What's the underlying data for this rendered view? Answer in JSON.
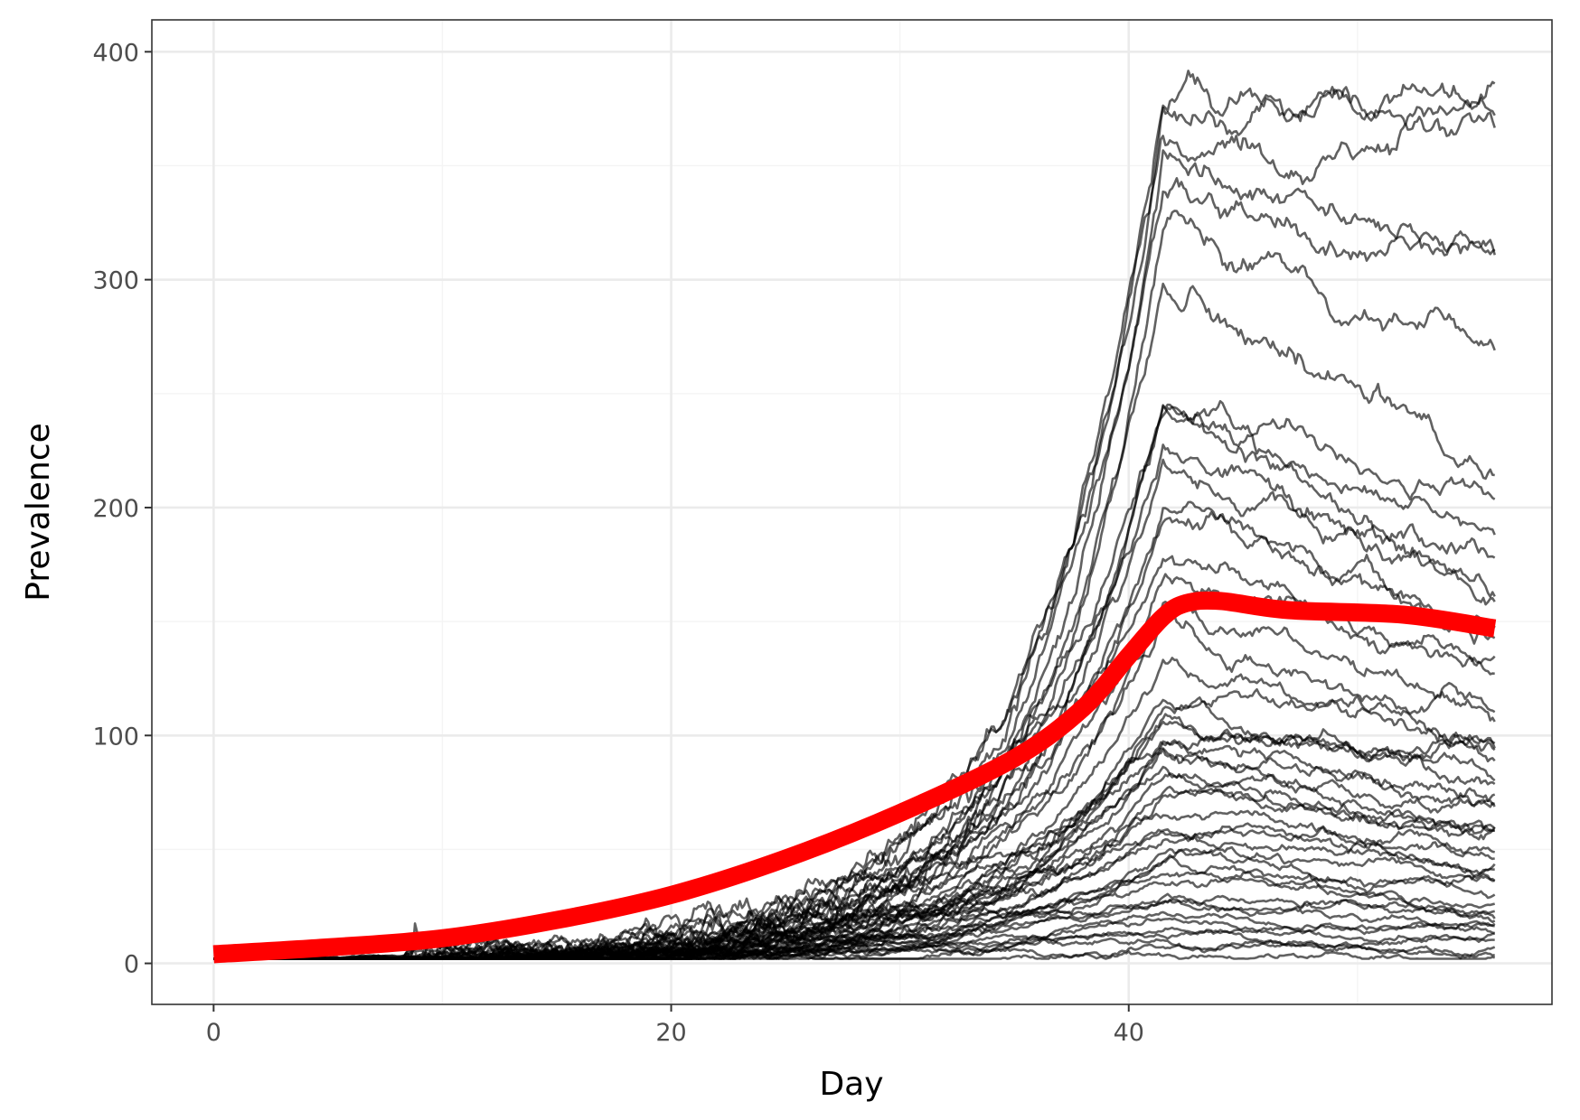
{
  "chart_data": {
    "type": "line",
    "title": "",
    "xlabel": "Day",
    "ylabel": "Prevalence",
    "xlim": [
      -2.7,
      58.5
    ],
    "ylim": [
      -18,
      414
    ],
    "x_ticks": [
      0,
      20,
      40
    ],
    "x_tick_labels": [
      "0",
      "20",
      "40"
    ],
    "y_ticks": [
      0,
      100,
      200,
      300,
      400
    ],
    "y_tick_labels": [
      "0",
      "100",
      "200",
      "300",
      "400"
    ],
    "grid": true,
    "legend": "none",
    "background": "#ffffff",
    "colors": {
      "simulation": "#000000",
      "mean": "#ff0000",
      "grid_major": "#ebebeb",
      "grid_minor": "#f4f4f4",
      "panel_border": "#333333"
    },
    "simulation_final_values": [
      382,
      378,
      358,
      312,
      306,
      264,
      215,
      198,
      192,
      178,
      160,
      157,
      150,
      140,
      130,
      122,
      115,
      103,
      98,
      94,
      90,
      86,
      82,
      78,
      74,
      70,
      66,
      62,
      58,
      55,
      52,
      49,
      46,
      43,
      40,
      37,
      34,
      31,
      28,
      25,
      22,
      19,
      17,
      15,
      13,
      11,
      9,
      7,
      5,
      3
    ],
    "simulation_peak_values": [
      376,
      372,
      360,
      352,
      334,
      326,
      300,
      244,
      240,
      236,
      226,
      215,
      205,
      200,
      186,
      175,
      160,
      146,
      132,
      120,
      112,
      108,
      104,
      100,
      96,
      92,
      88,
      84,
      80,
      76,
      72,
      68,
      64,
      60,
      56,
      52,
      48,
      44,
      40,
      36,
      32,
      28,
      25,
      22,
      19,
      16,
      13,
      10,
      7,
      4
    ],
    "series": [
      {
        "name": "mean",
        "x": [
          0,
          5,
          10,
          15,
          20,
          25,
          30,
          35,
          38,
          40,
          41.5,
          42.5,
          44,
          47,
          52,
          56
        ],
        "y": [
          4,
          7,
          11,
          19,
          30,
          46,
          66,
          90,
          112,
          135,
          152,
          158,
          159,
          155,
          153,
          147
        ]
      }
    ]
  }
}
